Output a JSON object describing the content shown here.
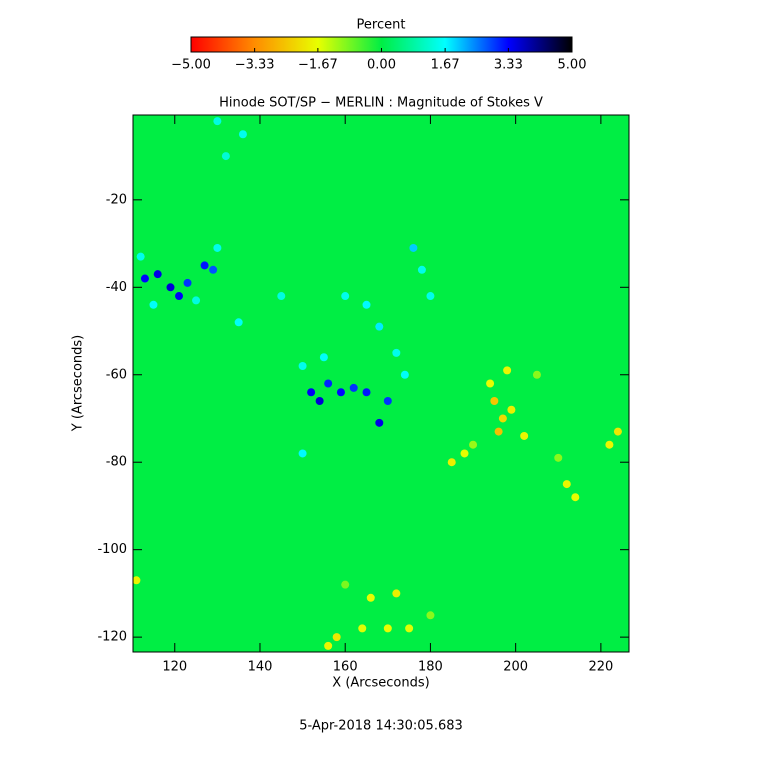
{
  "chart_data": {
    "type": "heatmap",
    "title": "Hinode SOT/SP − MERLIN : Magnitude of Stokes V",
    "footer": "5-Apr-2018 14:30:05.683",
    "x_label": "X (Arcseconds)",
    "y_label": "Y (Arcseconds)",
    "xlim": [
      110.2,
      226.6
    ],
    "ylim": [
      -123.4,
      -0.6
    ],
    "xticks": [
      120,
      140,
      160,
      180,
      200,
      220
    ],
    "yticks": [
      -20,
      -40,
      -60,
      -80,
      -100,
      -120
    ],
    "colorbar": {
      "title": "Percent",
      "lim": [
        -5,
        5
      ],
      "ticks": [
        {
          "value": -5,
          "label": "−5.00"
        },
        {
          "value": -3.33,
          "label": "−3.33"
        },
        {
          "value": -1.67,
          "label": "−1.67"
        },
        {
          "value": 0,
          "label": "0.00"
        },
        {
          "value": 1.67,
          "label": "1.67"
        },
        {
          "value": 3.33,
          "label": "3.33"
        },
        {
          "value": 5,
          "label": "5.00"
        }
      ],
      "colormap": [
        "#ff0000",
        "#ff8c00",
        "#e8ff00",
        "#00ee44",
        "#00ffff",
        "#0000ff",
        "#000000"
      ]
    },
    "background_value": 0,
    "points": {
      "x": [
        113,
        116,
        119,
        121,
        123,
        127,
        129,
        112,
        115,
        125,
        130,
        152,
        154,
        156,
        159,
        162,
        165,
        168,
        170,
        150,
        155,
        165,
        168,
        172,
        174,
        150,
        160,
        145,
        176,
        178,
        180,
        135,
        130,
        136,
        132,
        195,
        197,
        196,
        199,
        194,
        198,
        202,
        185,
        188,
        212,
        214,
        222,
        224,
        172,
        166,
        158,
        156,
        164,
        170,
        175,
        111,
        205,
        210,
        190,
        160,
        180
      ],
      "y": [
        -38,
        -37,
        -40,
        -42,
        -39,
        -35,
        -36,
        -33,
        -44,
        -43,
        -31,
        -64,
        -66,
        -62,
        -64,
        -63,
        -64,
        -71,
        -66,
        -58,
        -56,
        -44,
        -49,
        -55,
        -60,
        -78,
        -42,
        -42,
        -31,
        -36,
        -42,
        -48,
        -2,
        -5,
        -10,
        -66,
        -70,
        -73,
        -68,
        -62,
        -59,
        -74,
        -80,
        -78,
        -85,
        -88,
        -76,
        -73,
        -110,
        -111,
        -120,
        -122,
        -118,
        -118,
        -118,
        -107,
        -60,
        -79,
        -76,
        -108,
        -115
      ],
      "values": [
        3.3,
        3.5,
        3.6,
        3.4,
        3.0,
        3.2,
        2.8,
        1.5,
        1.6,
        1.4,
        1.5,
        3.4,
        3.6,
        3.1,
        3.3,
        3.0,
        3.2,
        3.5,
        3.0,
        1.5,
        1.6,
        1.7,
        1.8,
        1.5,
        1.6,
        1.7,
        1.5,
        1.4,
        2.0,
        1.5,
        1.5,
        1.6,
        1.4,
        1.5,
        1.3,
        -2.5,
        -2.2,
        -2.6,
        -1.9,
        -1.7,
        -1.8,
        -1.8,
        -1.9,
        -1.7,
        -1.8,
        -1.7,
        -1.8,
        -2.0,
        -1.9,
        -1.7,
        -2.0,
        -1.8,
        -1.6,
        -1.7,
        -1.6,
        -1.8,
        -1.0,
        -1.0,
        -1.1,
        -0.9,
        -1.0
      ]
    }
  }
}
